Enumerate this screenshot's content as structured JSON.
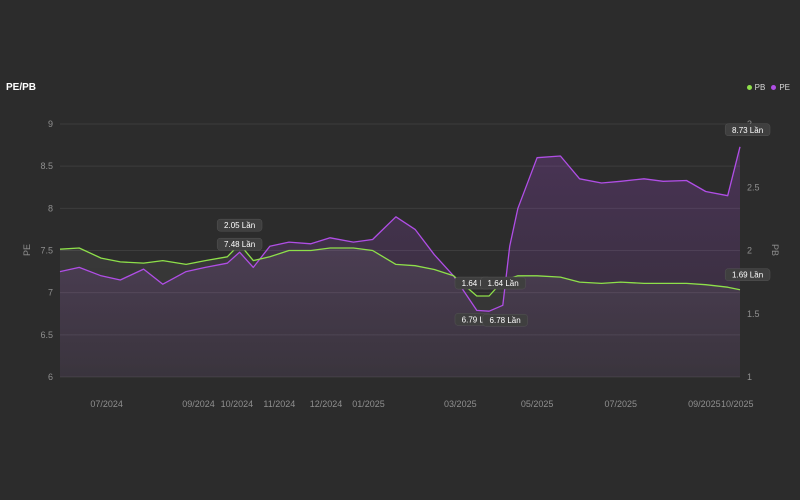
{
  "chart_data": {
    "type": "line",
    "title": "PE/PB",
    "legend_position": "top-right",
    "grid": true,
    "x_ticks": [
      "07/2024",
      "09/2024",
      "10/2024",
      "11/2024",
      "12/2024",
      "01/2025",
      "03/2025",
      "05/2025",
      "07/2025",
      "09/2025",
      "10/2025"
    ],
    "left_axis": {
      "label": "PE",
      "ylim": [
        6,
        9
      ],
      "ticks": [
        "6",
        "6.5",
        "7",
        "7.5",
        "8",
        "8.5",
        "9"
      ]
    },
    "right_axis": {
      "label": "PB",
      "ylim": [
        1,
        3
      ],
      "ticks": [
        "1",
        "1.5",
        "2",
        "2.5",
        "3"
      ]
    },
    "series": [
      {
        "name": "PB",
        "axis": "right",
        "color": "#8ee04a",
        "x": [
          "2024-06-01",
          "2024-06-15",
          "2024-07-01",
          "2024-07-15",
          "2024-08-01",
          "2024-08-15",
          "2024-09-01",
          "2024-09-15",
          "2024-10-01",
          "2024-10-10",
          "2024-10-20",
          "2024-11-01",
          "2024-11-15",
          "2024-12-01",
          "2024-12-15",
          "2025-01-01",
          "2025-01-15",
          "2025-02-01",
          "2025-02-15",
          "2025-03-01",
          "2025-03-15",
          "2025-04-01",
          "2025-04-10",
          "2025-04-20",
          "2025-05-01",
          "2025-05-15",
          "2025-06-01",
          "2025-06-15",
          "2025-07-01",
          "2025-07-15",
          "2025-08-01",
          "2025-08-15",
          "2025-09-01",
          "2025-09-15",
          "2025-10-01",
          "2025-10-10"
        ],
        "values": [
          2.01,
          2.02,
          1.94,
          1.91,
          1.9,
          1.92,
          1.89,
          1.92,
          1.95,
          2.05,
          1.92,
          1.95,
          2.0,
          2.0,
          2.02,
          2.02,
          2.0,
          1.89,
          1.88,
          1.85,
          1.8,
          1.64,
          1.64,
          1.76,
          1.8,
          1.8,
          1.79,
          1.75,
          1.74,
          1.75,
          1.74,
          1.74,
          1.74,
          1.73,
          1.71,
          1.69
        ]
      },
      {
        "name": "PE",
        "axis": "left",
        "color": "#b04ee6",
        "x": [
          "2024-06-01",
          "2024-06-15",
          "2024-07-01",
          "2024-07-15",
          "2024-08-01",
          "2024-08-15",
          "2024-09-01",
          "2024-09-15",
          "2024-10-01",
          "2024-10-10",
          "2024-10-20",
          "2024-11-01",
          "2024-11-15",
          "2024-12-01",
          "2024-12-15",
          "2025-01-01",
          "2025-01-15",
          "2025-02-01",
          "2025-02-15",
          "2025-03-01",
          "2025-03-15",
          "2025-04-01",
          "2025-04-10",
          "2025-04-20",
          "2025-04-25",
          "2025-05-01",
          "2025-05-15",
          "2025-06-01",
          "2025-06-15",
          "2025-07-01",
          "2025-07-15",
          "2025-08-01",
          "2025-08-15",
          "2025-09-01",
          "2025-09-15",
          "2025-10-01",
          "2025-10-10"
        ],
        "values": [
          7.25,
          7.3,
          7.2,
          7.15,
          7.28,
          7.1,
          7.25,
          7.3,
          7.35,
          7.48,
          7.3,
          7.55,
          7.6,
          7.58,
          7.65,
          7.6,
          7.63,
          7.9,
          7.75,
          7.45,
          7.2,
          6.79,
          6.78,
          6.85,
          7.55,
          8.0,
          8.6,
          8.62,
          8.35,
          8.3,
          8.32,
          8.35,
          8.32,
          8.33,
          8.2,
          8.15,
          8.73
        ]
      }
    ],
    "data_labels": [
      {
        "series": "PB",
        "x": "2024-10-10",
        "value": 2.05,
        "text": "2.05 Lần"
      },
      {
        "series": "PE",
        "x": "2024-10-10",
        "value": 7.48,
        "text": "7.48 Lần"
      },
      {
        "series": "PB",
        "x": "2025-04-01",
        "value": 1.64,
        "text": "1.64 L"
      },
      {
        "series": "PB",
        "x": "2025-04-10",
        "value": 1.64,
        "text": "1.64 Lần"
      },
      {
        "series": "PE",
        "x": "2025-04-01",
        "value": 6.79,
        "text": "6.79 L"
      },
      {
        "series": "PE",
        "x": "2025-04-10",
        "value": 6.78,
        "text": "6.78 Lần"
      },
      {
        "series": "PE",
        "x": "2025-10-10",
        "value": 8.73,
        "text": "8.73 Lần"
      },
      {
        "series": "PB",
        "x": "2025-10-10",
        "value": 1.69,
        "text": "1.69 Lần"
      }
    ]
  }
}
